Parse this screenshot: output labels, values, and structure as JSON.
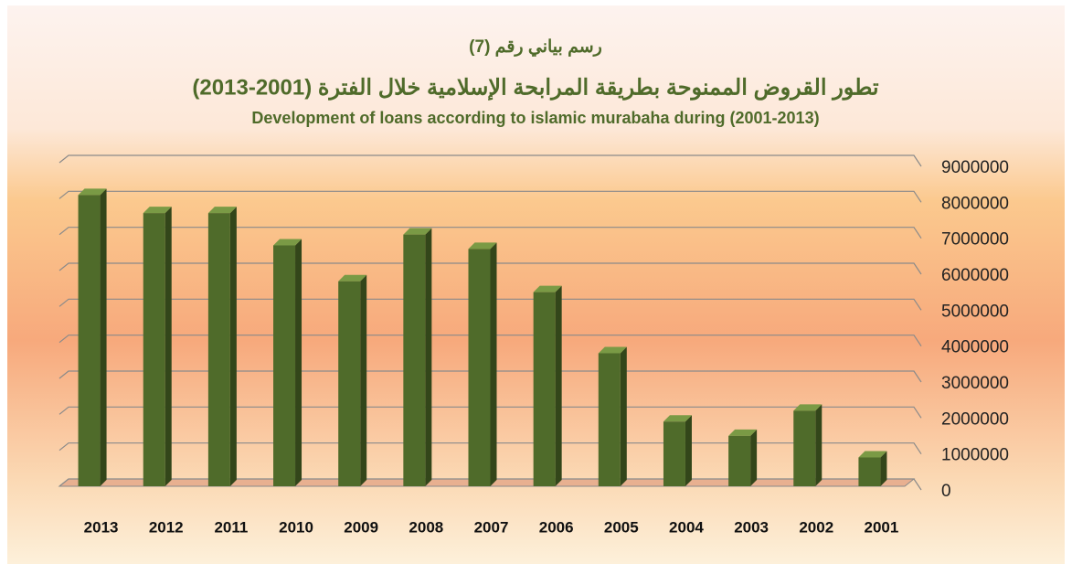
{
  "chart_data": {
    "type": "bar3d",
    "title": "رسم بياني رقم (7)",
    "subtitle": "تطور القروض الممنوحة بطريقة المرابحة الإسلامية خلال الفترة (2001-2013)",
    "subtitle_en": "Development of loans according to islamic murabaha during (2001-2013)",
    "categories": [
      "2013",
      "2012",
      "2011",
      "2010",
      "2009",
      "2008",
      "2007",
      "2006",
      "2005",
      "2004",
      "2003",
      "2002",
      "2001"
    ],
    "values": [
      8100000,
      7600000,
      7600000,
      6700000,
      5700000,
      7000000,
      6600000,
      5400000,
      3700000,
      1800000,
      1400000,
      2100000,
      800000
    ],
    "color": "#4f6b2a",
    "ylim": [
      0,
      9000000
    ],
    "yticks": [
      0,
      1000000,
      2000000,
      3000000,
      4000000,
      5000000,
      6000000,
      7000000,
      8000000,
      9000000
    ],
    "grid": true
  }
}
